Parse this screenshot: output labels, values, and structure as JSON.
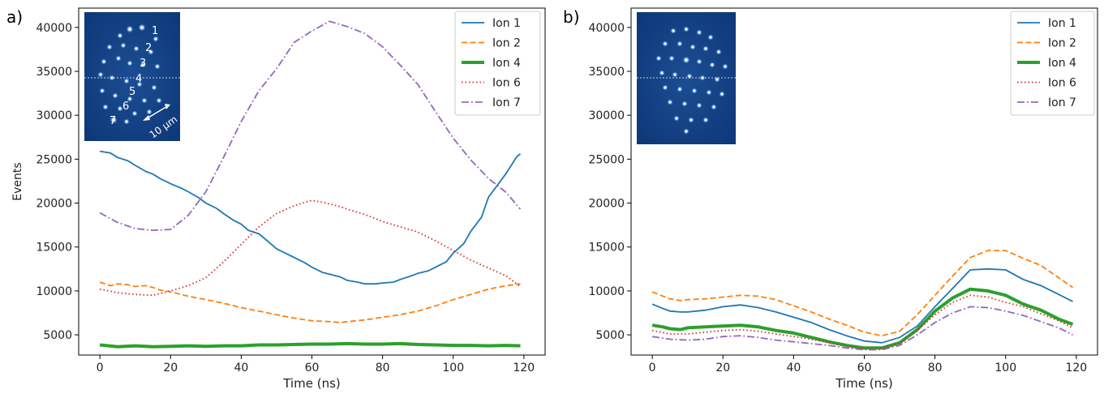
{
  "chart_data": [
    {
      "type": "line",
      "panel_label": "a)",
      "xlabel": "Time (ns)",
      "ylabel": "Events",
      "xlim": [
        -6,
        126
      ],
      "ylim": [
        2700,
        42200
      ],
      "xticks": [
        0,
        20,
        40,
        60,
        80,
        100,
        120
      ],
      "yticks": [
        5000,
        10000,
        15000,
        20000,
        25000,
        30000,
        35000,
        40000
      ],
      "legend_position": "top-right",
      "series": [
        {
          "name": "Ion 1",
          "color": "#1f77b4",
          "style": "solid",
          "x": [
            0,
            3,
            5,
            8,
            10,
            13,
            15,
            17,
            20,
            23,
            25,
            28,
            30,
            33,
            35,
            38,
            40,
            42,
            45,
            48,
            50,
            53,
            55,
            58,
            60,
            63,
            65,
            68,
            70,
            73,
            75,
            78,
            80,
            83,
            85,
            88,
            90,
            93,
            95,
            98,
            100,
            103,
            105,
            108,
            110,
            113,
            115,
            118,
            119
          ],
          "y": [
            25900,
            25700,
            25200,
            24800,
            24300,
            23600,
            23300,
            22800,
            22200,
            21700,
            21300,
            20600,
            20000,
            19400,
            18800,
            18000,
            17600,
            16900,
            16500,
            15500,
            14800,
            14200,
            13800,
            13200,
            12700,
            12100,
            11900,
            11600,
            11200,
            11000,
            10800,
            10800,
            10900,
            11000,
            11300,
            11700,
            12000,
            12300,
            12700,
            13300,
            14300,
            15400,
            16800,
            18400,
            20700,
            22300,
            23400,
            25300,
            25600
          ]
        },
        {
          "name": "Ion 2",
          "color": "#ff7f0e",
          "style": "dashed",
          "x": [
            0,
            3,
            5,
            8,
            10,
            13,
            15,
            17,
            20,
            25,
            30,
            35,
            40,
            45,
            50,
            55,
            60,
            65,
            68,
            70,
            75,
            80,
            85,
            90,
            95,
            100,
            105,
            110,
            115,
            119
          ],
          "y": [
            11000,
            10600,
            10800,
            10700,
            10500,
            10600,
            10400,
            10100,
            9900,
            9400,
            9000,
            8600,
            8100,
            7700,
            7300,
            6900,
            6600,
            6500,
            6400,
            6500,
            6700,
            7000,
            7300,
            7700,
            8300,
            9000,
            9600,
            10200,
            10600,
            10800
          ]
        },
        {
          "name": "Ion 4",
          "color": "#2ca02c",
          "style": "thick",
          "x": [
            0,
            5,
            10,
            15,
            20,
            25,
            30,
            35,
            40,
            45,
            50,
            55,
            60,
            65,
            70,
            75,
            80,
            85,
            90,
            95,
            100,
            105,
            110,
            115,
            119
          ],
          "y": [
            3850,
            3650,
            3750,
            3650,
            3700,
            3750,
            3700,
            3750,
            3750,
            3850,
            3850,
            3900,
            3950,
            3950,
            4000,
            3950,
            3950,
            4000,
            3900,
            3850,
            3800,
            3800,
            3750,
            3800,
            3750
          ]
        },
        {
          "name": "Ion 6",
          "color": "#d62728",
          "style": "dotted",
          "x": [
            0,
            5,
            10,
            15,
            20,
            25,
            30,
            35,
            40,
            45,
            50,
            55,
            58,
            60,
            63,
            65,
            68,
            70,
            75,
            80,
            85,
            90,
            95,
            100,
            105,
            110,
            115,
            119
          ],
          "y": [
            10200,
            9800,
            9600,
            9500,
            10000,
            10600,
            11500,
            13300,
            15300,
            17300,
            18800,
            19700,
            20100,
            20300,
            20100,
            19900,
            19600,
            19300,
            18700,
            17900,
            17300,
            16700,
            15700,
            14600,
            13500,
            12600,
            11700,
            10500
          ]
        },
        {
          "name": "Ion 7",
          "color": "#9467bd",
          "style": "dashdot",
          "x": [
            0,
            5,
            10,
            15,
            20,
            25,
            30,
            35,
            40,
            45,
            50,
            55,
            60,
            65,
            70,
            75,
            80,
            85,
            90,
            95,
            100,
            105,
            110,
            115,
            119
          ],
          "y": [
            18900,
            17800,
            17100,
            16900,
            17000,
            18600,
            21300,
            25200,
            29300,
            32800,
            35300,
            38300,
            39600,
            40700,
            40100,
            39300,
            37800,
            35700,
            33500,
            30400,
            27400,
            24900,
            22800,
            21200,
            19300
          ]
        }
      ]
    },
    {
      "type": "line",
      "panel_label": "b)",
      "xlabel": "Time (ns)",
      "ylabel": "",
      "xlim": [
        -6,
        126
      ],
      "ylim": [
        2700,
        42200
      ],
      "xticks": [
        0,
        20,
        40,
        60,
        80,
        100,
        120
      ],
      "yticks": [
        5000,
        10000,
        15000,
        20000,
        25000,
        30000,
        35000,
        40000
      ],
      "legend_position": "top-right",
      "series": [
        {
          "name": "Ion 1",
          "color": "#1f77b4",
          "style": "solid",
          "x": [
            0,
            3,
            5,
            8,
            10,
            15,
            20,
            25,
            30,
            35,
            40,
            45,
            50,
            55,
            60,
            65,
            70,
            75,
            80,
            85,
            90,
            95,
            100,
            105,
            110,
            115,
            119
          ],
          "y": [
            8500,
            8000,
            7700,
            7600,
            7600,
            7800,
            8200,
            8400,
            8100,
            7600,
            7000,
            6400,
            5600,
            4900,
            4300,
            4100,
            4700,
            6000,
            8200,
            10300,
            12400,
            12500,
            12400,
            11300,
            10600,
            9600,
            8800
          ]
        },
        {
          "name": "Ion 2",
          "color": "#ff7f0e",
          "style": "dashed",
          "x": [
            0,
            3,
            5,
            8,
            10,
            15,
            20,
            25,
            30,
            35,
            40,
            45,
            50,
            55,
            60,
            65,
            70,
            75,
            80,
            85,
            90,
            95,
            100,
            105,
            110,
            115,
            119
          ],
          "y": [
            9900,
            9400,
            9100,
            8900,
            9000,
            9100,
            9300,
            9500,
            9400,
            9000,
            8300,
            7600,
            6800,
            6100,
            5300,
            4900,
            5400,
            7300,
            9500,
            11700,
            13800,
            14600,
            14600,
            13700,
            12900,
            11500,
            10400
          ]
        },
        {
          "name": "Ion 4",
          "color": "#2ca02c",
          "style": "thick",
          "x": [
            0,
            3,
            5,
            8,
            10,
            15,
            20,
            25,
            30,
            35,
            40,
            45,
            50,
            55,
            60,
            65,
            70,
            75,
            80,
            85,
            90,
            95,
            100,
            105,
            110,
            115,
            119
          ],
          "y": [
            6100,
            5900,
            5700,
            5600,
            5800,
            5900,
            6000,
            6100,
            5900,
            5500,
            5200,
            4700,
            4200,
            3800,
            3500,
            3500,
            4100,
            5600,
            7700,
            9200,
            10200,
            10000,
            9500,
            8500,
            7800,
            6800,
            6200
          ]
        },
        {
          "name": "Ion 6",
          "color": "#d62728",
          "style": "dotted",
          "x": [
            0,
            5,
            10,
            15,
            20,
            25,
            30,
            35,
            40,
            45,
            50,
            55,
            60,
            65,
            70,
            75,
            80,
            85,
            90,
            95,
            100,
            105,
            110,
            115,
            119
          ],
          "y": [
            5500,
            5100,
            5100,
            5300,
            5500,
            5600,
            5400,
            5100,
            4800,
            4500,
            4100,
            3700,
            3400,
            3500,
            4000,
            5500,
            7300,
            8700,
            9500,
            9300,
            8700,
            8200,
            7400,
            6600,
            5800
          ]
        },
        {
          "name": "Ion 7",
          "color": "#9467bd",
          "style": "dashdot",
          "x": [
            0,
            5,
            10,
            15,
            20,
            25,
            30,
            35,
            40,
            45,
            50,
            55,
            60,
            65,
            70,
            75,
            80,
            85,
            90,
            95,
            100,
            105,
            110,
            115,
            119
          ],
          "y": [
            4800,
            4500,
            4400,
            4500,
            4800,
            4900,
            4700,
            4400,
            4200,
            4000,
            3800,
            3500,
            3300,
            3300,
            3800,
            5000,
            6400,
            7500,
            8200,
            8100,
            7700,
            7200,
            6500,
            5800,
            5000
          ]
        }
      ]
    }
  ],
  "inset_a": {
    "ion_labels": [
      "1",
      "2",
      "3",
      "4",
      "5",
      "6",
      "7"
    ],
    "scale_label": "10 μm"
  }
}
